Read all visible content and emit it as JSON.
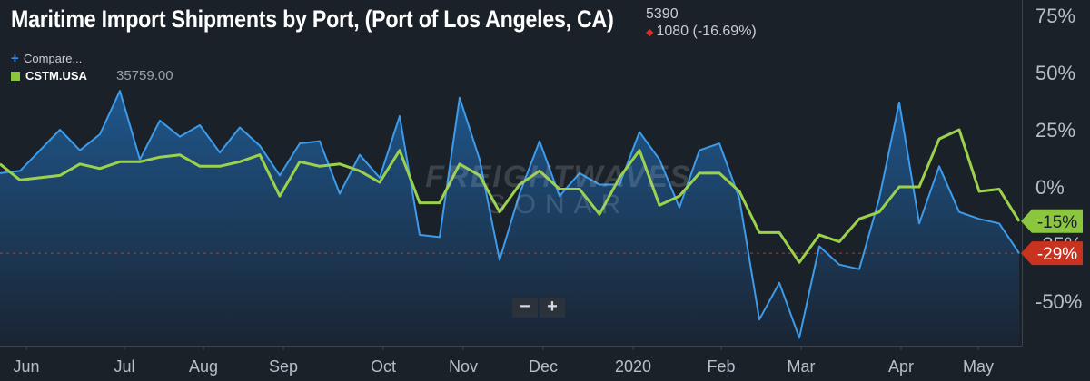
{
  "header": {
    "title": "Maritime Import Shipments by Port, (Port of Los Angeles, CA)",
    "value": "5390",
    "change": "1080 (-16.69%)"
  },
  "legend": {
    "compare_label": "Compare...",
    "series_name": "CSTM.USA",
    "series_value": "35759.00"
  },
  "watermark": {
    "line1": "FREIGHTWAVES",
    "line2": "SONAR"
  },
  "zoom": {
    "minus": "−",
    "plus": "+"
  },
  "colors": {
    "background": "#1b2129",
    "compare_line": "#3d9be9",
    "compare_fill_top": "#1f5a92",
    "main_line": "#9bd14d",
    "badge_green": "#8cc63f",
    "badge_red": "#c8321e",
    "grid": "#2a3139",
    "ref_line": "#d0402a"
  },
  "chart_data": {
    "type": "line",
    "x_tick_labels": [
      "Jun",
      "Jul",
      "Aug",
      "Sep",
      "Oct",
      "Nov",
      "Dec",
      "2020",
      "Feb",
      "Mar",
      "Apr",
      "May"
    ],
    "y_tick_labels": [
      "75%",
      "50%",
      "25%",
      "0%",
      "-25%",
      "-50%"
    ],
    "ylim": [
      -67,
      78
    ],
    "grid": false,
    "series": [
      {
        "name": "Compare...",
        "role": "compare",
        "values": [
          6,
          7,
          16,
          25,
          16,
          23,
          42,
          12,
          29,
          22,
          27,
          15,
          26,
          18,
          5,
          19,
          20,
          -3,
          14,
          4,
          31,
          -21,
          -22,
          39,
          12,
          -32,
          -3,
          20,
          -4,
          6,
          1,
          1,
          24,
          12,
          -9,
          16,
          19,
          -5,
          -58,
          -42,
          -66,
          -26,
          -34,
          -36,
          -5,
          37,
          -16,
          9,
          -11,
          -14,
          -16,
          -29
        ],
        "last_value_label": "-29%"
      },
      {
        "name": "CSTM.USA",
        "role": "main",
        "values": [
          10,
          3,
          4,
          5,
          10,
          8,
          11,
          11,
          13,
          14,
          9,
          9,
          11,
          14,
          -4,
          11,
          9,
          10,
          7,
          2,
          16,
          -7,
          -7,
          10,
          5,
          -11,
          1,
          7,
          -1,
          -1,
          -12,
          4,
          16,
          -8,
          -4,
          6,
          6,
          -2,
          -20,
          -20,
          -33,
          -21,
          -24,
          -14,
          -11,
          0,
          0,
          21,
          25,
          -2,
          -1,
          -15
        ],
        "last_value_label": "-15%"
      }
    ]
  }
}
